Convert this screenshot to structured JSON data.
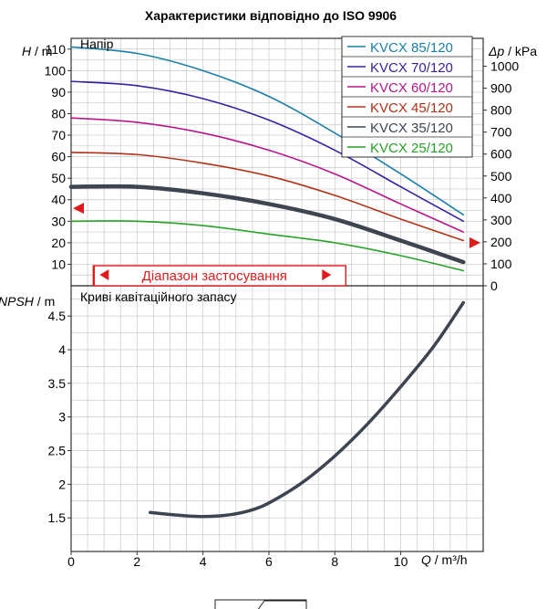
{
  "chart_data": [
    {
      "type": "line",
      "title": "Характеристики відповідно до ISO 9906",
      "panel_label": "Напір",
      "ylabel_left": {
        "symbol": "H",
        "unit": " / m"
      },
      "ylabel_right": {
        "symbol": "Δp",
        "unit": " / kPa"
      },
      "xlim": [
        0,
        12.5
      ],
      "ylim": [
        0,
        115
      ],
      "y2lim": [
        0,
        1127
      ],
      "y_ticks": [
        "10",
        "20",
        "30",
        "40",
        "50",
        "60",
        "70",
        "80",
        "90",
        "100",
        "110"
      ],
      "y2_ticks": [
        "0",
        "100",
        "200",
        "300",
        "400",
        "500",
        "600",
        "700",
        "800",
        "900",
        "1000"
      ],
      "grid": true,
      "legend_position": "top-right",
      "series": [
        {
          "name": "KVCX 85/120",
          "color": "#1a7fa8",
          "x": [
            0,
            2,
            4,
            6,
            8,
            10,
            11.9
          ],
          "y": [
            111,
            108,
            100,
            88,
            71,
            52,
            33
          ]
        },
        {
          "name": "KVCX 70/120",
          "color": "#3b1fa3",
          "x": [
            0,
            2,
            4,
            6,
            8,
            10,
            11.9
          ],
          "y": [
            95,
            93,
            87,
            77,
            63,
            46,
            30
          ]
        },
        {
          "name": "KVCX 60/120",
          "color": "#b8168c",
          "x": [
            0,
            2,
            4,
            6,
            8,
            10,
            11.9
          ],
          "y": [
            78,
            76,
            71,
            63,
            52,
            38,
            25
          ]
        },
        {
          "name": "KVCX 45/120",
          "color": "#b23218",
          "x": [
            0,
            2,
            4,
            6,
            8,
            10,
            11.9
          ],
          "y": [
            62,
            61,
            57,
            51,
            42,
            31,
            21
          ]
        },
        {
          "name": "KVCX 35/120",
          "color": "#3d4550",
          "x": [
            0,
            2,
            4,
            6,
            8,
            10,
            11.9
          ],
          "y": [
            46,
            46,
            43,
            38,
            31,
            21,
            11
          ],
          "bold": true
        },
        {
          "name": "KVCX 25/120",
          "color": "#24a324",
          "x": [
            0,
            2,
            4,
            6,
            8,
            10,
            11.9
          ],
          "y": [
            30,
            30,
            28,
            24,
            20,
            14,
            7
          ]
        }
      ],
      "markers": {
        "left_y": 36,
        "right_y": 20
      },
      "application_range": {
        "label": "Діапазон застосування",
        "x_from": 0.7,
        "x_to": 8.0
      },
      "colors": {
        "range": "#e01b1b",
        "grid": "#c8c8c8"
      }
    },
    {
      "type": "line",
      "panel_label": "Криві кавітаційного запасу",
      "ylabel": {
        "symbol": "NPSH",
        "unit": " / m"
      },
      "xlabel": {
        "symbol": "Q",
        "unit": " / m³/h"
      },
      "xlim": [
        0,
        12.5
      ],
      "ylim": [
        1.0,
        4.95
      ],
      "x_ticks": [
        "0",
        "2",
        "4",
        "6",
        "8",
        "10"
      ],
      "y_ticks": [
        "1.5",
        "2",
        "2.5",
        "3",
        "3.5",
        "4",
        "4.5"
      ],
      "grid": true,
      "series": [
        {
          "color": "#3d4550",
          "x": [
            2.4,
            3,
            3.5,
            4,
            4.5,
            5,
            5.5,
            6,
            7,
            8,
            9,
            10,
            11,
            11.9
          ],
          "y": [
            1.58,
            1.55,
            1.53,
            1.52,
            1.53,
            1.56,
            1.62,
            1.72,
            2.02,
            2.42,
            2.9,
            3.45,
            4.05,
            4.7
          ]
        }
      ]
    }
  ]
}
